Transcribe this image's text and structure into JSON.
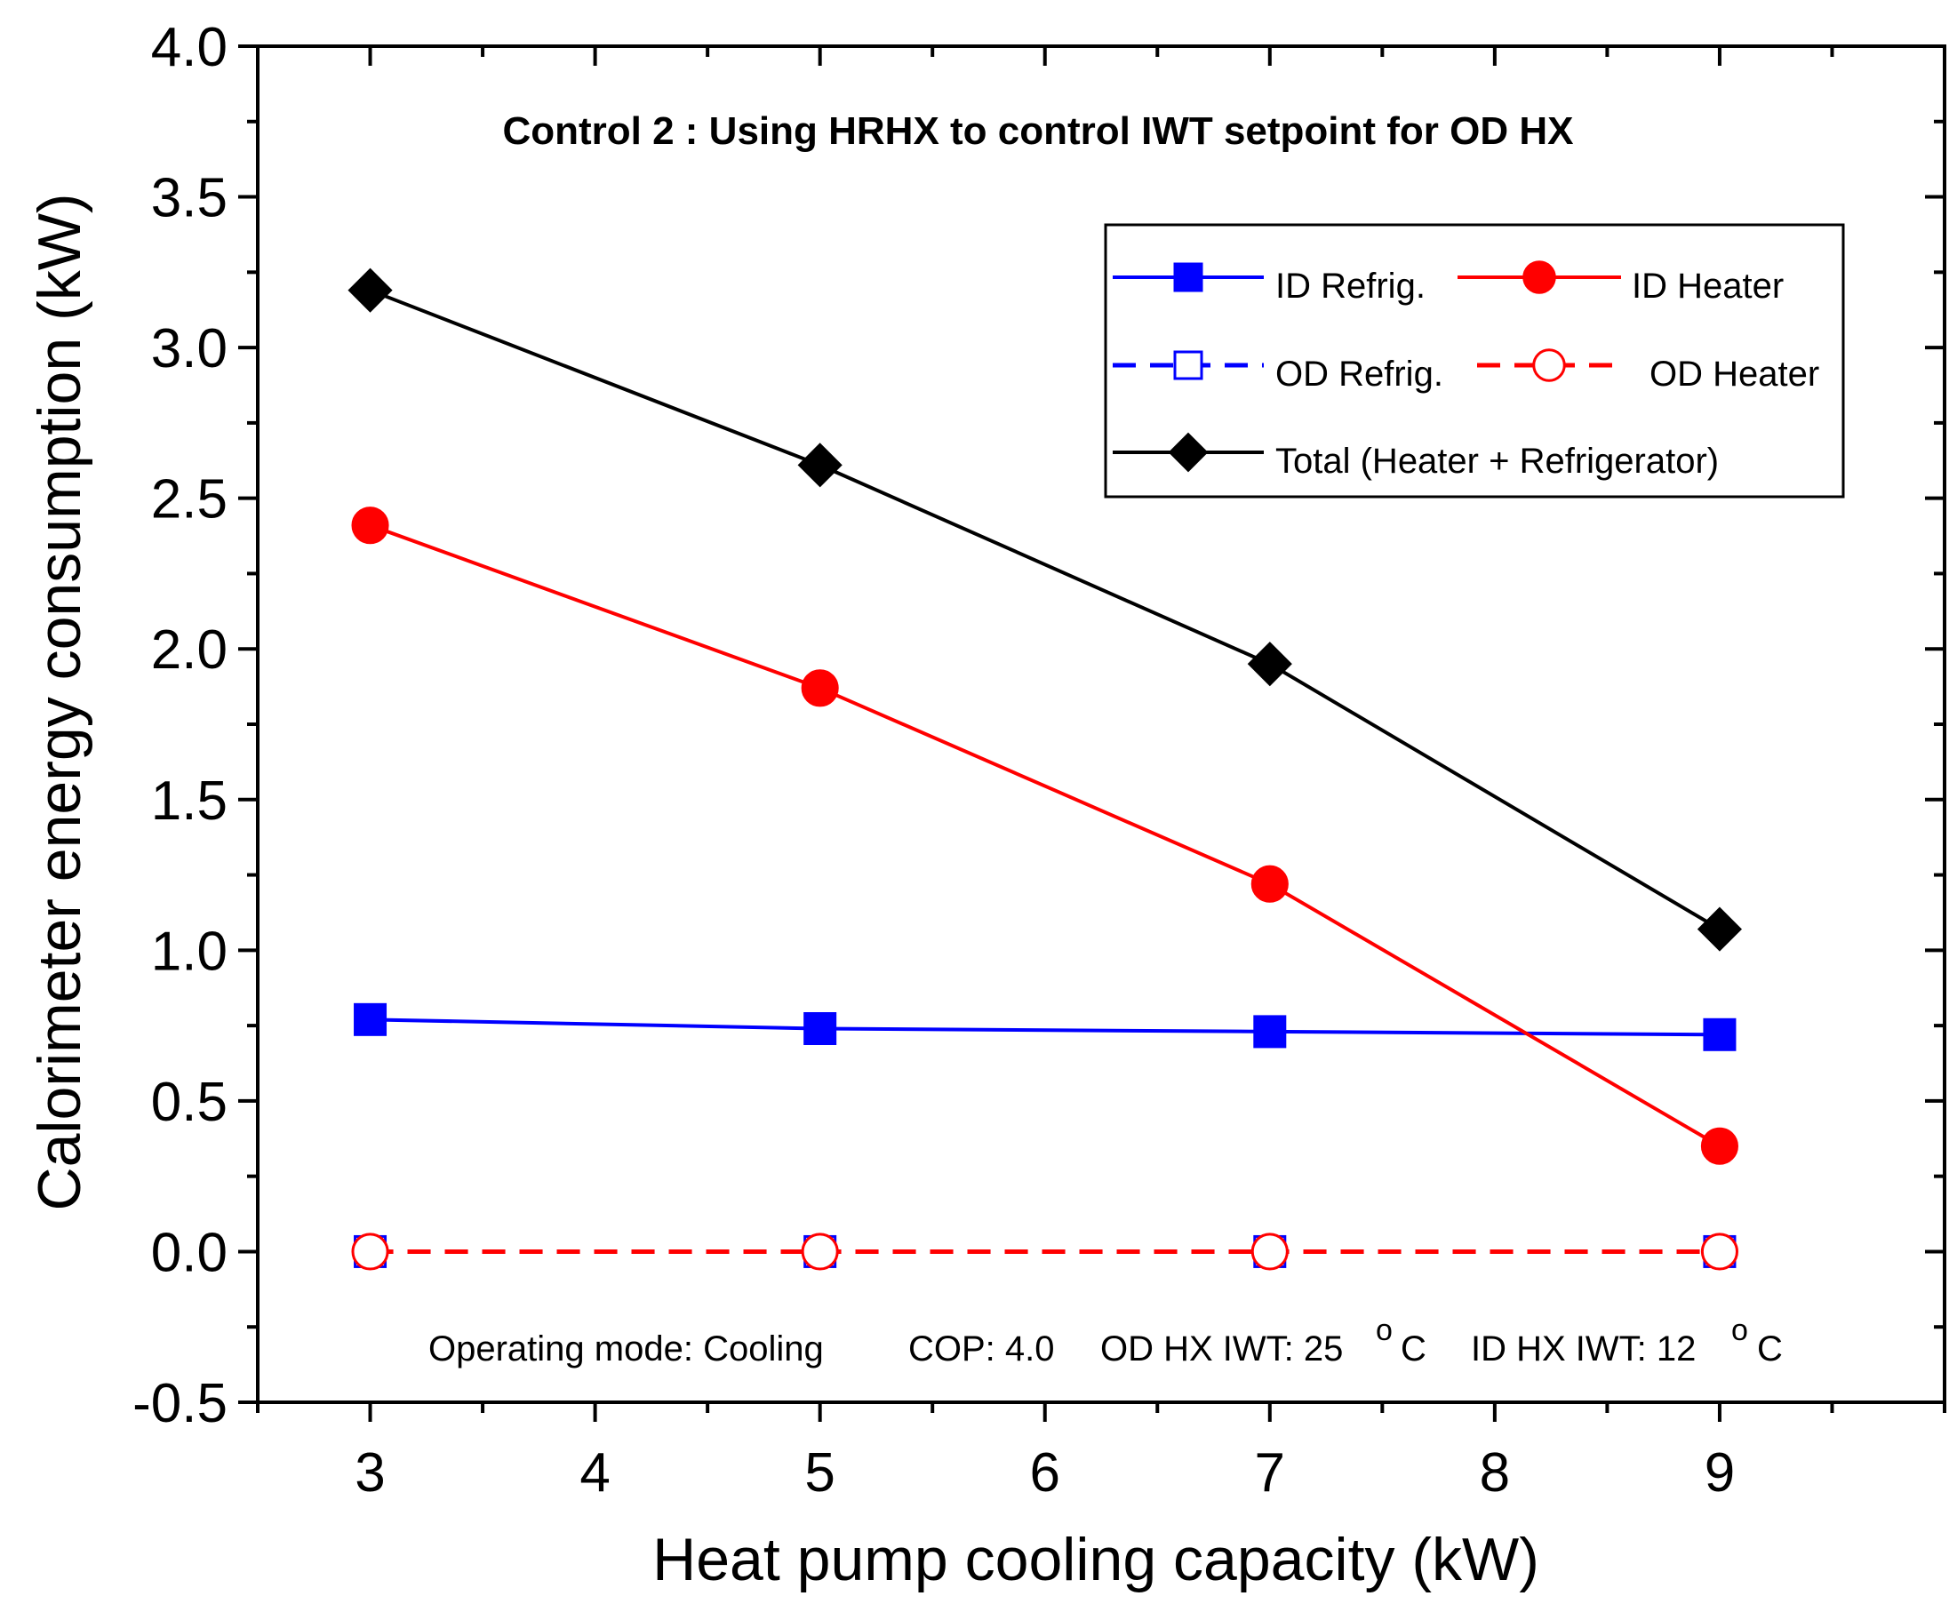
{
  "chart_data": {
    "type": "line",
    "title": "Control 2 : Using HRHX to control IWT setpoint for OD HX",
    "xlabel": "Heat pump cooling capacity (kW)",
    "ylabel": "Calorimeter energy consumption (kW)",
    "xlim": [
      2.5,
      10.0
    ],
    "ylim": [
      -0.5,
      4.0
    ],
    "xticks": [
      3,
      4,
      5,
      6,
      7,
      8,
      9
    ],
    "yticks": [
      -0.5,
      0.0,
      0.5,
      1.0,
      1.5,
      2.0,
      2.5,
      3.0,
      3.5,
      4.0
    ],
    "xtick_labels": [
      "3",
      "4",
      "5",
      "6",
      "7",
      "8",
      "9"
    ],
    "ytick_labels": [
      "-0.5",
      "0.0",
      "0.5",
      "1.0",
      "1.5",
      "2.0",
      "2.5",
      "3.0",
      "3.5",
      "4.0"
    ],
    "x": [
      3,
      5,
      7,
      9
    ],
    "series": [
      {
        "name": "ID Refrig.",
        "values": [
          0.77,
          0.74,
          0.73,
          0.72
        ],
        "color": "#0000ff",
        "marker": "square",
        "filled": true,
        "dashed": false
      },
      {
        "name": "ID Heater",
        "values": [
          2.41,
          1.87,
          1.22,
          0.35
        ],
        "color": "#ff0000",
        "marker": "circle",
        "filled": true,
        "dashed": false
      },
      {
        "name": "OD Refrig.",
        "values": [
          0.0,
          0.0,
          0.0,
          0.0
        ],
        "color": "#0000ff",
        "marker": "square",
        "filled": false,
        "dashed": true
      },
      {
        "name": "OD Heater",
        "values": [
          0.0,
          0.0,
          0.0,
          0.0
        ],
        "color": "#ff0000",
        "marker": "circle",
        "filled": false,
        "dashed": true
      },
      {
        "name": "Total (Heater + Refrigerator)",
        "values": [
          3.19,
          2.61,
          1.95,
          1.07
        ],
        "color": "#000000",
        "marker": "diamond",
        "filled": true,
        "dashed": false
      }
    ],
    "legend_position": "top-right",
    "annotation": {
      "mode": "Operating mode: Cooling",
      "cop": "COP: 4.0",
      "od_iwt": "OD HX IWT: 25",
      "id_iwt": "ID HX IWT: 12",
      "degree": "o",
      "unit": "C"
    }
  }
}
